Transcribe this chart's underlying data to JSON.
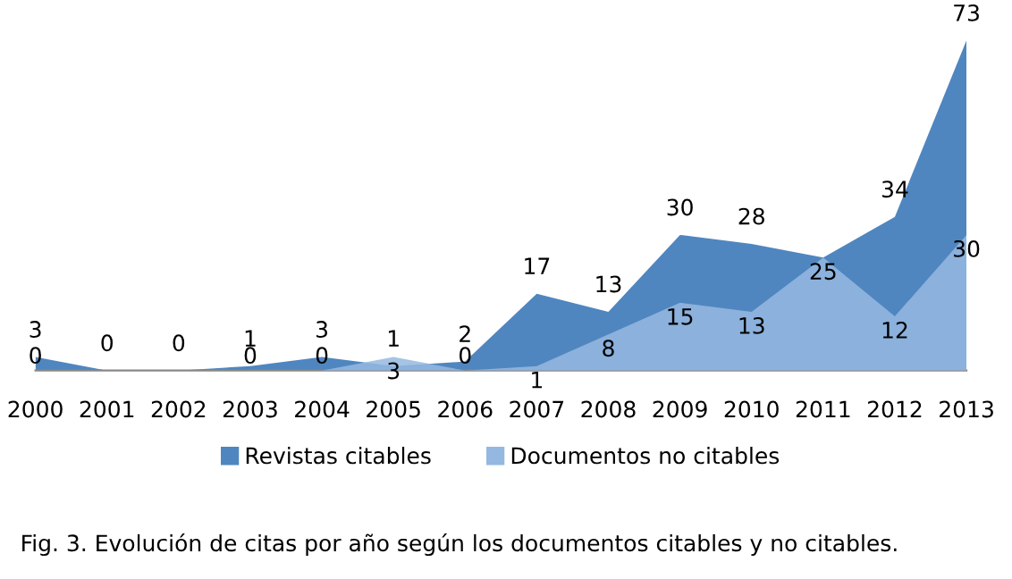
{
  "chart_data": {
    "type": "area",
    "categories": [
      "2000",
      "2001",
      "2002",
      "2003",
      "2004",
      "2005",
      "2006",
      "2007",
      "2008",
      "2009",
      "2010",
      "2011",
      "2012",
      "2013"
    ],
    "series": [
      {
        "name": "Revistas citables",
        "color": "#4f86bf",
        "values": [
          3,
          0,
          0,
          1,
          3,
          1,
          2,
          17,
          13,
          30,
          28,
          25,
          34,
          73
        ],
        "value_labels": [
          "3",
          "0",
          "0",
          "1",
          "3",
          "1",
          "2",
          "17",
          "13",
          "30",
          "28",
          null,
          "34",
          "73"
        ]
      },
      {
        "name": "Documentos no citables",
        "color": "#95b8e0",
        "values": [
          0,
          0,
          0,
          0,
          0,
          3,
          0,
          1,
          8,
          15,
          13,
          25,
          12,
          30
        ],
        "value_labels": [
          "0",
          null,
          null,
          "0",
          "0",
          "3",
          "0",
          "1",
          "8",
          "15",
          "13",
          "25",
          "12",
          "30"
        ]
      }
    ],
    "legend": "bottom",
    "annotations": [
      "Fig. 3. Evolución de citas por año según los documentos citables y no citables."
    ]
  }
}
